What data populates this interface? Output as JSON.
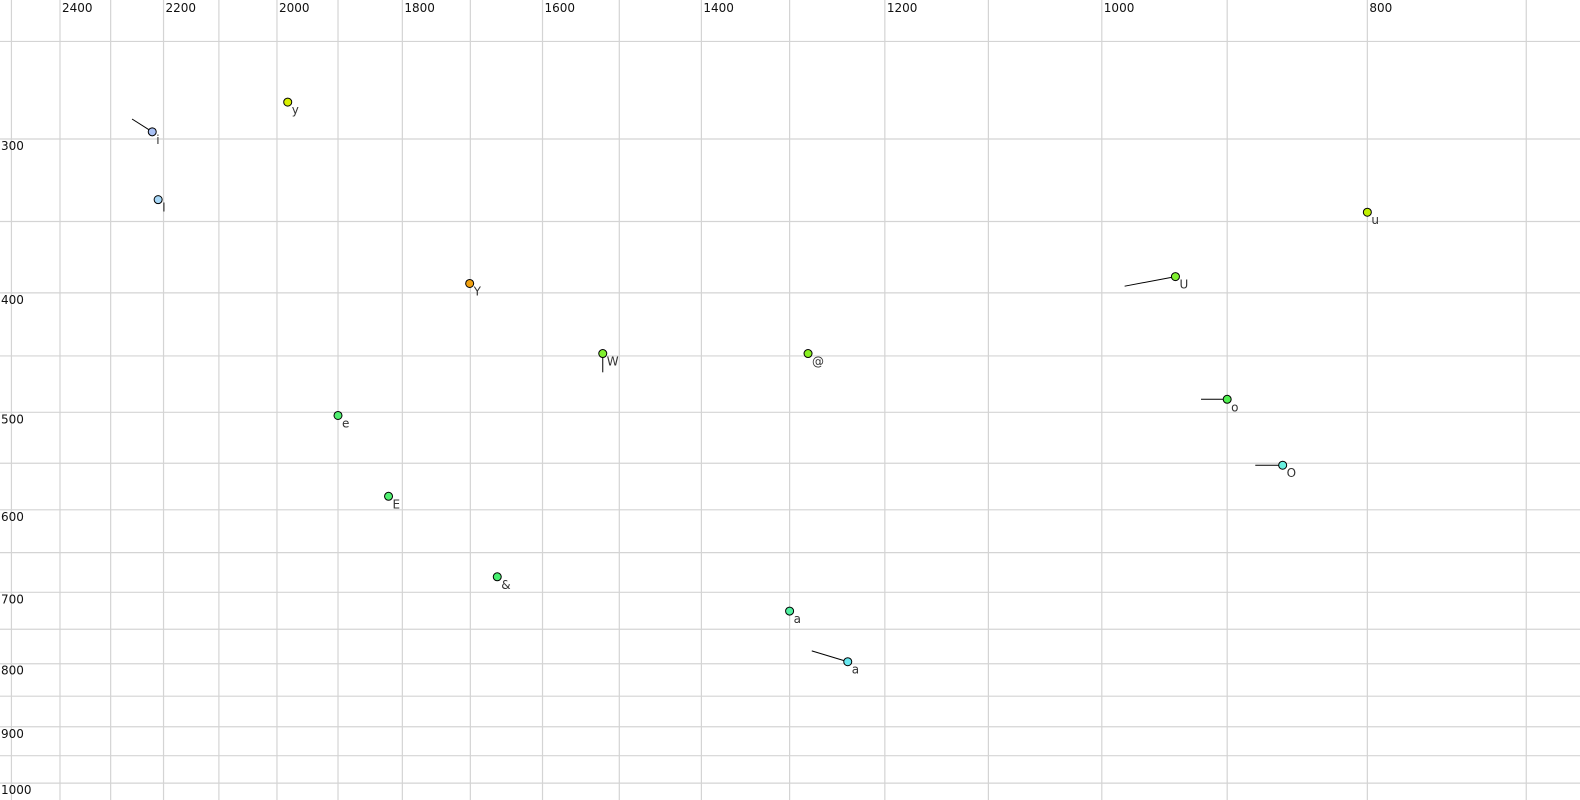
{
  "chart_data": {
    "type": "scatter",
    "title": "",
    "xlabel": "",
    "ylabel": "",
    "x_axis": {
      "scale": "log",
      "reversed": true,
      "position": "top",
      "range": [
        2500,
        700
      ],
      "ticks": [
        2400,
        2200,
        2000,
        1800,
        1600,
        1400,
        1200,
        1000,
        800
      ],
      "grid_step": 100
    },
    "y_axis": {
      "scale": "log",
      "reversed": false,
      "position": "left",
      "range": [
        250,
        1000
      ],
      "ticks": [
        300,
        400,
        500,
        600,
        700,
        800,
        900,
        1000
      ],
      "grid_step": 50
    },
    "grid": true,
    "points": [
      {
        "label": "i",
        "x": 2221,
        "y": 296,
        "from": [
          2259,
          289
        ],
        "color": "#a8c0f4"
      },
      {
        "label": "I",
        "x": 2210,
        "y": 336,
        "color": "#a8d8f8"
      },
      {
        "label": "y",
        "x": 1982,
        "y": 280,
        "color": "#d8f000"
      },
      {
        "label": "Y",
        "x": 1701,
        "y": 393,
        "color": "#f0a010"
      },
      {
        "label": "W",
        "x": 1521,
        "y": 448,
        "from": [
          1521,
          464
        ],
        "color": "#80f030"
      },
      {
        "label": "@",
        "x": 1280,
        "y": 448,
        "color": "#88f020"
      },
      {
        "label": "e",
        "x": 1900,
        "y": 503,
        "color": "#50f070"
      },
      {
        "label": "E",
        "x": 1821,
        "y": 585,
        "color": "#50f070"
      },
      {
        "label": "&",
        "x": 1662,
        "y": 680,
        "color": "#48f070"
      },
      {
        "label": "a",
        "x": 1300,
        "y": 725,
        "color": "#50f0a0",
        "label_color": "#667080"
      },
      {
        "label": "a",
        "x": 1238,
        "y": 797,
        "from": [
          1276,
          781
        ],
        "color": "#68e8f0"
      },
      {
        "label": "U",
        "x": 940,
        "y": 388,
        "from": [
          981,
          395
        ],
        "color": "#80f030"
      },
      {
        "label": "u",
        "x": 800,
        "y": 344,
        "color": "#c0f000"
      },
      {
        "label": "o",
        "x": 900,
        "y": 488,
        "from": [
          920,
          488
        ],
        "color": "#50f050"
      },
      {
        "label": "O",
        "x": 859,
        "y": 552,
        "from": [
          879,
          552
        ],
        "color": "#68f0e0"
      }
    ]
  }
}
